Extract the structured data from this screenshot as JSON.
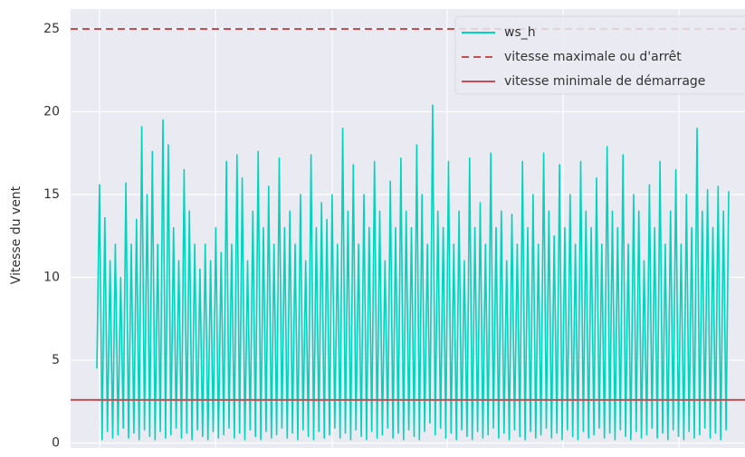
{
  "chart_data": {
    "type": "line",
    "ylabel": "Vitesse du vent",
    "series": [
      {
        "name": "ws_h",
        "color": "#00d4bd",
        "values": [
          4.5,
          15.6,
          0.2,
          13.6,
          0.7,
          11,
          0.3,
          12,
          0.5,
          10,
          0.9,
          15.7,
          0.3,
          12,
          0.6,
          13.5,
          0.2,
          19.1,
          0.8,
          15,
          0.4,
          17.6,
          0.2,
          12,
          0.7,
          19.5,
          0.3,
          18,
          0.5,
          13,
          0.9,
          11,
          0.3,
          16.5,
          0.6,
          14,
          0.2,
          12,
          0.8,
          10.5,
          0.4,
          12,
          0.2,
          11,
          0.7,
          13,
          0.3,
          11.5,
          0.5,
          17,
          0.9,
          12,
          0.3,
          17.4,
          0.6,
          16,
          0.2,
          11,
          0.8,
          14,
          0.4,
          17.6,
          0.2,
          13,
          0.7,
          15.5,
          0.3,
          12,
          0.5,
          17.2,
          0.9,
          13,
          0.3,
          14,
          0.6,
          12,
          0.2,
          15,
          0.8,
          11,
          0.4,
          17.4,
          0.2,
          13,
          0.7,
          14.5,
          0.3,
          13.5,
          0.5,
          15,
          0.9,
          12,
          0.3,
          19,
          0.6,
          14,
          0.2,
          16.8,
          0.8,
          12,
          0.4,
          15,
          0.2,
          13,
          0.7,
          17,
          0.3,
          14,
          0.5,
          11,
          0.9,
          15.8,
          0.3,
          13,
          0.6,
          17.2,
          0.2,
          14,
          0.8,
          13,
          0.4,
          18,
          0.2,
          15,
          0.7,
          12,
          1.2,
          20.4,
          0.5,
          14,
          0.9,
          13,
          0.3,
          17,
          0.6,
          12,
          0.2,
          14,
          0.8,
          11,
          0.4,
          17.2,
          0.2,
          13,
          0.7,
          14.5,
          0.3,
          12,
          0.5,
          17.5,
          0.9,
          13,
          0.3,
          14,
          0.6,
          11,
          0.2,
          13.8,
          0.8,
          12,
          0.4,
          17,
          0.2,
          13,
          0.7,
          15,
          0.3,
          12,
          0.5,
          17.5,
          0.9,
          14,
          0.3,
          12.5,
          0.6,
          16.8,
          0.2,
          13,
          0.8,
          15,
          0.4,
          12,
          0.2,
          17,
          0.7,
          14,
          0.3,
          13,
          0.5,
          16,
          0.9,
          12,
          0.3,
          17.9,
          0.6,
          14,
          0.2,
          13,
          0.8,
          17.4,
          0.4,
          12,
          0.2,
          15,
          0.7,
          14,
          0.3,
          11,
          0.5,
          15.6,
          0.9,
          13,
          0.3,
          17,
          0.6,
          12,
          0.2,
          14,
          0.8,
          16.5,
          0.4,
          12,
          0.2,
          15,
          0.7,
          13,
          0.3,
          19,
          0.5,
          14,
          0.9,
          15.3,
          0.3,
          13,
          0.6,
          15.5,
          0.2,
          14,
          0.8,
          15.2
        ]
      }
    ],
    "reference_lines": [
      {
        "name": "vitesse maximale ou d'arrêt",
        "value": 25,
        "color": "#c44e52",
        "style": "dashed"
      },
      {
        "name": "vitesse minimale de démarrage",
        "value": 2.6,
        "color": "#c44e52",
        "style": "solid"
      }
    ],
    "ylim": [
      -0.3,
      26.2
    ],
    "yticks": [
      0,
      5,
      10,
      15,
      20,
      25
    ],
    "grid": true,
    "legend": "upper right"
  }
}
